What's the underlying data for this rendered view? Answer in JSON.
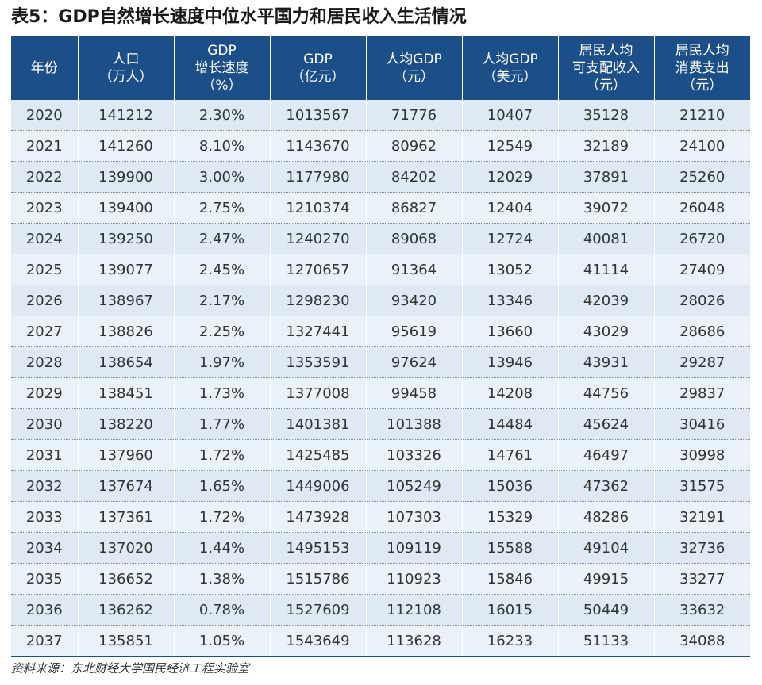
{
  "title": "表5：GDP自然增长速度中位水平国力和居民收入生活情况",
  "table": {
    "headers": [
      [
        "年份"
      ],
      [
        "人口",
        "（万人）"
      ],
      [
        "GDP",
        "增长速度",
        "（%）"
      ],
      [
        "GDP",
        "（亿元）"
      ],
      [
        "人均GDP",
        "（元）"
      ],
      [
        "人均GDP",
        "（美元）"
      ],
      [
        "居民人均",
        "可支配收入",
        "（元）"
      ],
      [
        "居民人均",
        "消费支出",
        "（元）"
      ]
    ],
    "rows": [
      [
        "2020",
        "141212",
        "2.30%",
        "1013567",
        "71776",
        "10407",
        "35128",
        "21210"
      ],
      [
        "2021",
        "141260",
        "8.10%",
        "1143670",
        "80962",
        "12549",
        "32189",
        "24100"
      ],
      [
        "2022",
        "139900",
        "3.00%",
        "1177980",
        "84202",
        "12029",
        "37891",
        "25260"
      ],
      [
        "2023",
        "139400",
        "2.75%",
        "1210374",
        "86827",
        "12404",
        "39072",
        "26048"
      ],
      [
        "2024",
        "139250",
        "2.47%",
        "1240270",
        "89068",
        "12724",
        "40081",
        "26720"
      ],
      [
        "2025",
        "139077",
        "2.45%",
        "1270657",
        "91364",
        "13052",
        "41114",
        "27409"
      ],
      [
        "2026",
        "138967",
        "2.17%",
        "1298230",
        "93420",
        "13346",
        "42039",
        "28026"
      ],
      [
        "2027",
        "138826",
        "2.25%",
        "1327441",
        "95619",
        "13660",
        "43029",
        "28686"
      ],
      [
        "2028",
        "138654",
        "1.97%",
        "1353591",
        "97624",
        "13946",
        "43931",
        "29287"
      ],
      [
        "2029",
        "138451",
        "1.73%",
        "1377008",
        "99458",
        "14208",
        "44756",
        "29837"
      ],
      [
        "2030",
        "138220",
        "1.77%",
        "1401381",
        "101388",
        "14484",
        "45624",
        "30416"
      ],
      [
        "2031",
        "137960",
        "1.72%",
        "1425485",
        "103326",
        "14761",
        "46497",
        "30998"
      ],
      [
        "2032",
        "137674",
        "1.65%",
        "1449006",
        "105249",
        "15036",
        "47362",
        "31575"
      ],
      [
        "2033",
        "137361",
        "1.72%",
        "1473928",
        "107303",
        "15329",
        "48286",
        "32191"
      ],
      [
        "2034",
        "137020",
        "1.44%",
        "1495153",
        "109119",
        "15588",
        "49104",
        "32736"
      ],
      [
        "2035",
        "136652",
        "1.38%",
        "1515786",
        "110923",
        "15846",
        "49915",
        "33277"
      ],
      [
        "2036",
        "136262",
        "0.78%",
        "1527609",
        "112108",
        "16015",
        "50449",
        "33632"
      ],
      [
        "2037",
        "135851",
        "1.05%",
        "1543649",
        "113628",
        "16233",
        "51133",
        "34088"
      ]
    ]
  },
  "source": "资料来源：东北财经大学国民经济工程实验室",
  "colors": {
    "header_bg": "#1c4f87",
    "row_bg": "#dfe9f3",
    "row_alt_bg": "#eaf1f8"
  }
}
